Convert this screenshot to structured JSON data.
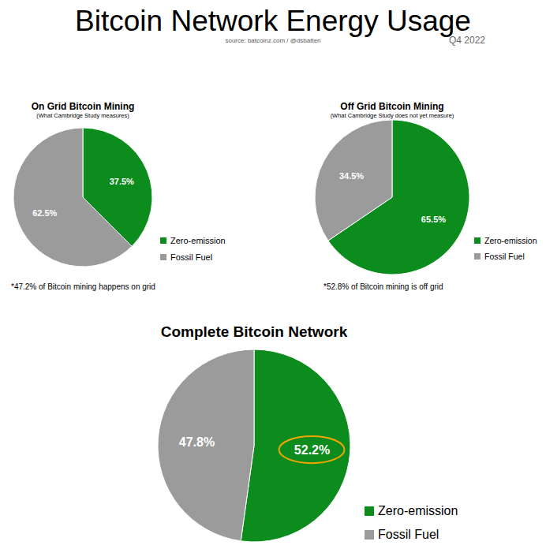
{
  "title": "Bitcoin Network Energy Usage",
  "subtitle": "source: batcoinz.com / @dsbatten",
  "date": "Q4 2022",
  "chart_data": [
    {
      "type": "pie",
      "title": "On Grid Bitcoin Mining",
      "subtitle": "(What Cambridge Study measures)",
      "categories": [
        "Zero-emission",
        "Fossil Fuel"
      ],
      "values": [
        37.5,
        62.5
      ],
      "value_labels": [
        "37.5%",
        "62.5%"
      ],
      "colors": [
        "#0c8c1c",
        "#9b9b9b"
      ],
      "data_labels": true,
      "legend": "right",
      "footnote": "*47.2% of Bitcoin mining happens on grid"
    },
    {
      "type": "pie",
      "title": "Off Grid Bitcoin Mining",
      "subtitle": "(What Cambridge Study does not yet measure)",
      "categories": [
        "Zero-emission",
        "Fossil Fuel"
      ],
      "values": [
        65.5,
        34.5
      ],
      "value_labels": [
        "65.5%",
        "34.5%"
      ],
      "colors": [
        "#0c8c1c",
        "#9b9b9b"
      ],
      "data_labels": true,
      "legend": "right",
      "footnote": "*52.8% of Bitcoin mining is off grid"
    },
    {
      "type": "pie",
      "title": "Complete Bitcoin Network",
      "categories": [
        "Zero-emission",
        "Fossil Fuel"
      ],
      "values": [
        52.2,
        47.8
      ],
      "value_labels": [
        "52.2%",
        "47.8%"
      ],
      "colors": [
        "#0c8c1c",
        "#9b9b9b"
      ],
      "data_labels": true,
      "legend": "right"
    }
  ]
}
